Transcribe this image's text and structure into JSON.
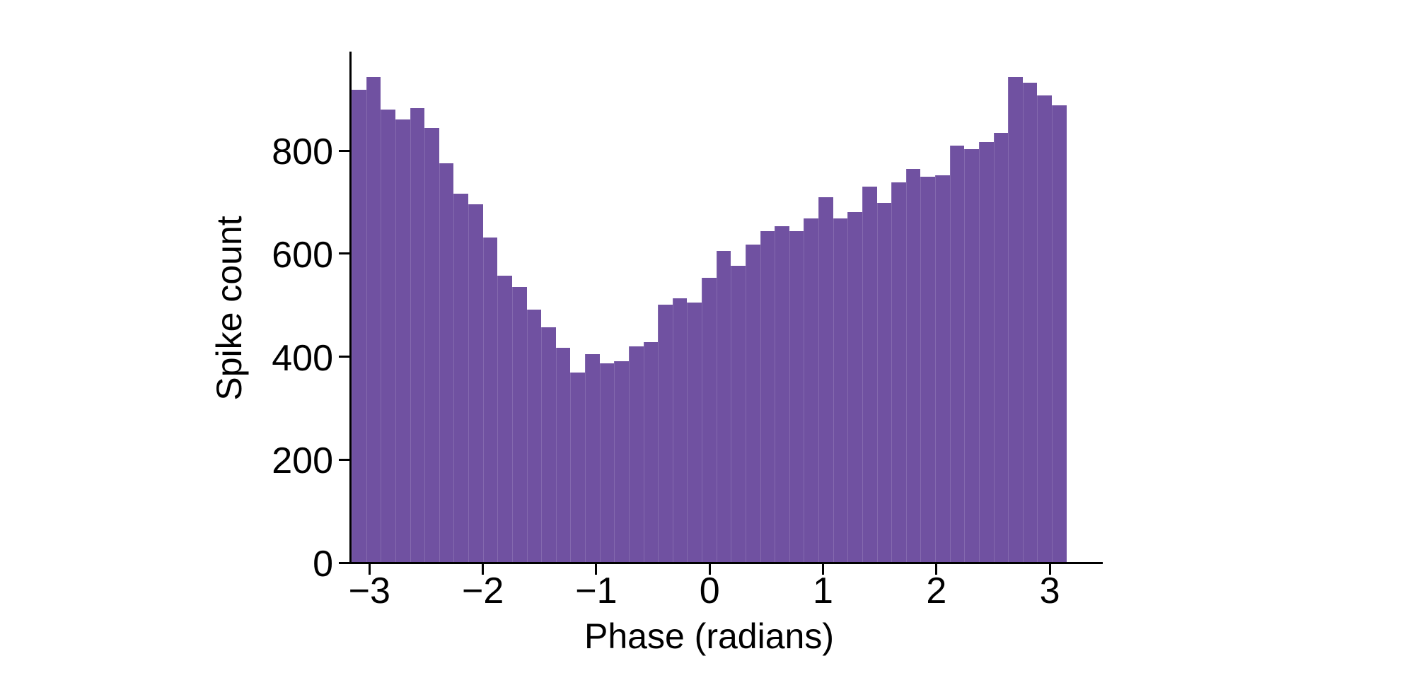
{
  "chart_data": {
    "type": "bar",
    "subtype": "histogram",
    "title": "",
    "xlabel": "Phase (radians)",
    "ylabel": "Spike count",
    "legend": null,
    "grid": false,
    "background_color": "#FFFFFF",
    "bar_color": "#7051A1",
    "axis_color": "#000000",
    "bin_range": [
      -3.1416,
      3.1416
    ],
    "n_bins": 49,
    "bin_width_rad": 0.1282,
    "bin_centers": [
      -3.078,
      -2.949,
      -2.821,
      -2.693,
      -2.565,
      -2.436,
      -2.308,
      -2.18,
      -2.052,
      -1.924,
      -1.795,
      -1.667,
      -1.539,
      -1.411,
      -1.282,
      -1.154,
      -1.026,
      -0.898,
      -0.769,
      -0.641,
      -0.513,
      -0.385,
      -0.257,
      -0.128,
      0.0,
      0.128,
      0.256,
      0.385,
      0.513,
      0.641,
      0.769,
      0.898,
      1.026,
      1.154,
      1.282,
      1.41,
      1.539,
      1.667,
      1.795,
      1.923,
      2.052,
      2.18,
      2.308,
      2.436,
      2.564,
      2.693,
      2.821,
      2.949,
      3.077
    ],
    "values": [
      916,
      941,
      878,
      858,
      881,
      842,
      774,
      714,
      694,
      629,
      555,
      533,
      490,
      455,
      416,
      368,
      403,
      386,
      389,
      418,
      427,
      499,
      512,
      503,
      551,
      604,
      574,
      616,
      642,
      651,
      642,
      666,
      708,
      666,
      679,
      728,
      696,
      736,
      762,
      748,
      750,
      808,
      801,
      815,
      833,
      940,
      930,
      905,
      886
    ],
    "x_ticks": [
      {
        "value": -3,
        "label": "−3"
      },
      {
        "value": -2,
        "label": "−2"
      },
      {
        "value": -1,
        "label": "−1"
      },
      {
        "value": 0,
        "label": "0"
      },
      {
        "value": 1,
        "label": "1"
      },
      {
        "value": 2,
        "label": "2"
      },
      {
        "value": 3,
        "label": "3"
      }
    ],
    "y_ticks": [
      {
        "value": 0,
        "label": "0"
      },
      {
        "value": 200,
        "label": "200"
      },
      {
        "value": 400,
        "label": "400"
      },
      {
        "value": 600,
        "label": "600"
      },
      {
        "value": 800,
        "label": "800"
      }
    ],
    "ylim": [
      0,
      990
    ],
    "xlim": [
      -3.18,
      3.47
    ]
  }
}
